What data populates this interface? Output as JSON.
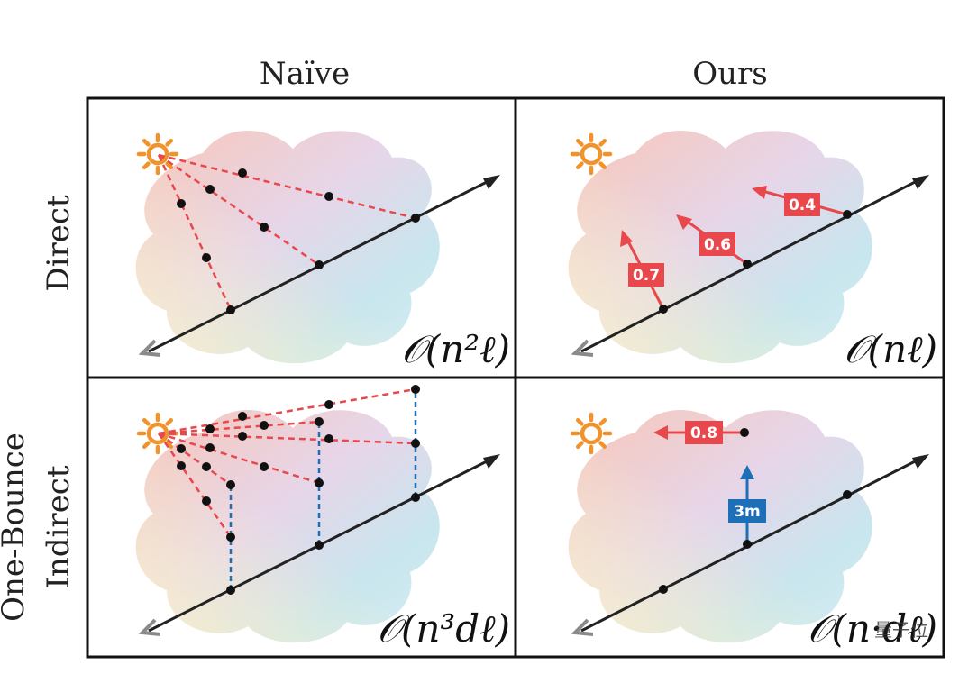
{
  "columns": [
    "Naïve",
    "Ours"
  ],
  "rows": [
    "Direct",
    "One-Bounce\nIndirect"
  ],
  "row_lines": [
    [
      "Direct"
    ],
    [
      "One-Bounce",
      "Indirect"
    ]
  ],
  "complexity": {
    "naive_direct": "𝒪(n²ℓ)",
    "ours_direct": "𝒪(nℓ)",
    "naive_indirect": "𝒪(n³dℓ)",
    "ours_indirect": "𝒪(n·dℓ)"
  },
  "labels": {
    "ours_direct": [
      "0.7",
      "0.6",
      "0.4"
    ],
    "ours_indirect_red": "0.8",
    "ours_indirect_blue": "3m"
  },
  "watermark": "量子位",
  "colors": {
    "sun": "#F0932B",
    "red": "#E8474C",
    "blue": "#1D6FB8",
    "ray": "#222222",
    "camera": "#8A8A8A"
  }
}
